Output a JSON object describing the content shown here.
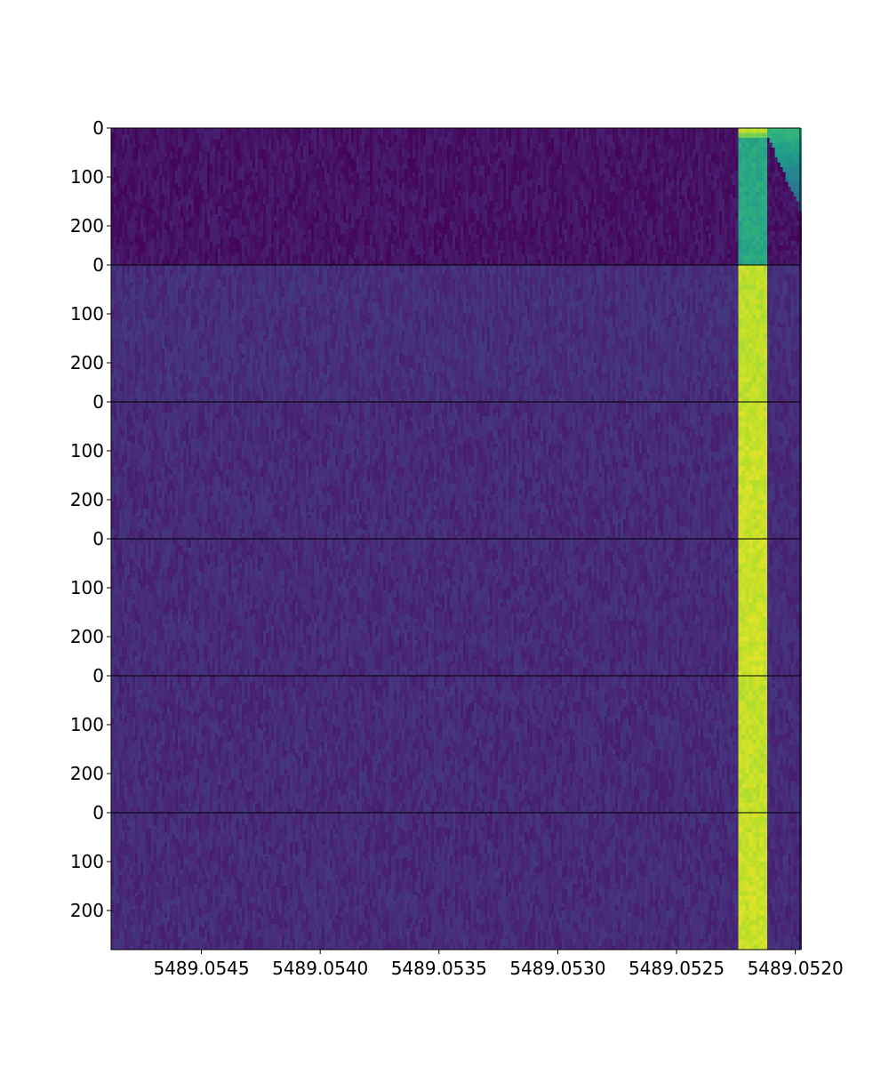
{
  "chart_data": {
    "type": "heatmap",
    "title": "",
    "xlabel": "",
    "ylabel": "",
    "colormap": "viridis",
    "x_axis": {
      "reversed": true,
      "xlim": [
        5489.05488,
        5489.05198
      ],
      "ticks": [
        5489.0545,
        5489.054,
        5489.0535,
        5489.053,
        5489.0525,
        5489.052
      ],
      "tick_labels": [
        "5489.0545",
        "5489.0540",
        "5489.0535",
        "5489.0530",
        "5489.0525",
        "5489.0520"
      ]
    },
    "panels": [
      {
        "ylim": [
          280,
          0
        ],
        "yticks": [
          0,
          100,
          200
        ],
        "ytick_labels": [
          "0",
          "100",
          "200"
        ],
        "background_level": 0.05,
        "bright_band_level": 0.6,
        "bright_band_top_level": 0.9,
        "right_band_decay": true
      },
      {
        "ylim": [
          280,
          0
        ],
        "yticks": [
          0,
          100,
          200
        ],
        "ytick_labels": [
          "0",
          "100",
          "200"
        ],
        "background_level": 0.13,
        "bright_band_level": 0.9,
        "right_band_decay": false
      },
      {
        "ylim": [
          280,
          0
        ],
        "yticks": [
          0,
          100,
          200
        ],
        "ytick_labels": [
          "0",
          "100",
          "200"
        ],
        "background_level": 0.12,
        "bright_band_level": 0.92,
        "right_band_decay": false
      },
      {
        "ylim": [
          280,
          0
        ],
        "yticks": [
          0,
          100,
          200
        ],
        "ytick_labels": [
          "0",
          "100",
          "200"
        ],
        "background_level": 0.12,
        "bright_band_level": 0.92,
        "right_band_decay": false
      },
      {
        "ylim": [
          280,
          0
        ],
        "yticks": [
          0,
          100,
          200
        ],
        "ytick_labels": [
          "0",
          "100",
          "200"
        ],
        "background_level": 0.12,
        "bright_band_level": 0.91,
        "right_band_decay": false
      },
      {
        "ylim": [
          280,
          0
        ],
        "yticks": [
          0,
          100,
          200
        ],
        "ytick_labels": [
          "0",
          "100",
          "200"
        ],
        "background_level": 0.12,
        "bright_band_level": 0.92,
        "right_band_decay": false
      }
    ],
    "bright_band_x_range": [
      5489.05224,
      5489.05212
    ],
    "decay_band_x_range": [
      5489.05212,
      5489.05198
    ],
    "grid": false,
    "legend": "none"
  }
}
